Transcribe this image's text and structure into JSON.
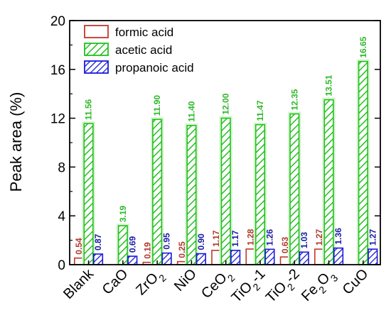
{
  "chart_data": {
    "type": "bar",
    "title": "",
    "xlabel": "",
    "ylabel": "Peak area (%)",
    "ylim": [
      0,
      20
    ],
    "yticks": [
      0,
      4,
      8,
      12,
      16,
      20
    ],
    "grid": false,
    "legend_position": "top-left",
    "categories": [
      "Blank",
      "CaO",
      "ZrO2",
      "NiO",
      "CeO2",
      "TiO2-1",
      "TiO2-2",
      "Fe2O3",
      "CuO"
    ],
    "series": [
      {
        "name": "formic acid",
        "color": "#c0392b",
        "pattern": "none",
        "values": [
          0.54,
          null,
          0.19,
          0.25,
          1.17,
          1.28,
          0.63,
          1.27,
          null
        ],
        "labels": [
          "0.54",
          null,
          "0.19",
          "0.25",
          "1.17",
          "1.28",
          "0.63",
          "1.27",
          null
        ]
      },
      {
        "name": "acetic acid",
        "color": "#22c01e",
        "pattern": "diagonal",
        "values": [
          11.56,
          3.19,
          11.9,
          11.4,
          12.0,
          11.47,
          12.35,
          13.51,
          16.65
        ],
        "labels": [
          "11.56",
          "3.19",
          "11.90",
          "11.40",
          "12.00",
          "11.47",
          "12.35",
          "13.51",
          "16.65"
        ]
      },
      {
        "name": "propanoic acid",
        "color": "#1a1adb",
        "pattern": "diagonal",
        "values": [
          0.87,
          0.69,
          0.95,
          0.9,
          1.17,
          1.26,
          1.03,
          1.36,
          1.27
        ],
        "labels": [
          "0.87",
          "0.69",
          "0.95",
          "0.90",
          "1.17",
          "1.26",
          "1.03",
          "1.36",
          "1.27"
        ]
      }
    ]
  }
}
